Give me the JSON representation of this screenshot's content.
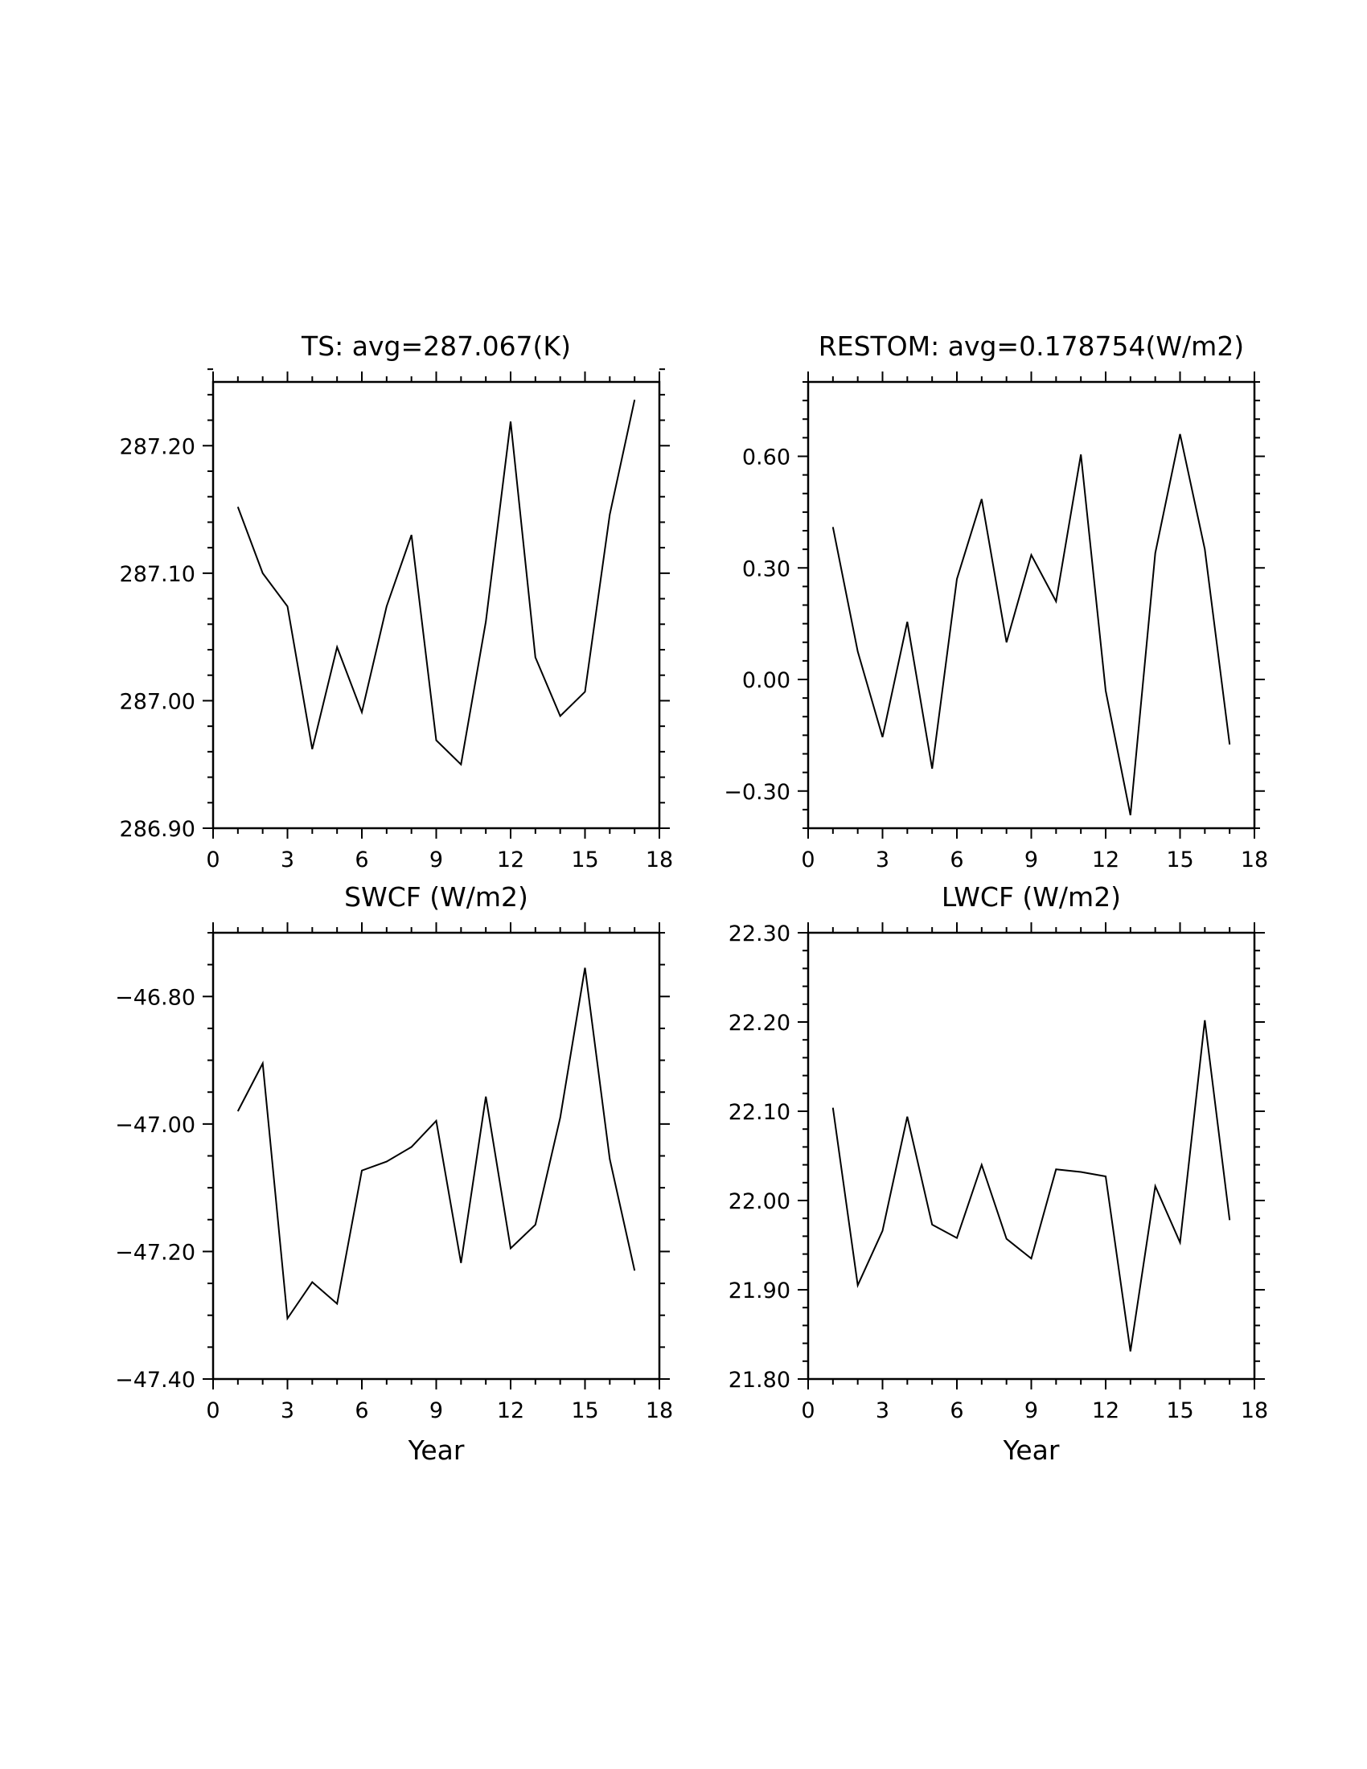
{
  "chart_data": [
    {
      "type": "line",
      "title": "TS: avg=287.067(K)",
      "xlabel": "",
      "ylabel": "",
      "xlim": [
        0,
        18
      ],
      "ylim": [
        286.9,
        287.25
      ],
      "x_ticks": [
        0,
        3,
        6,
        9,
        12,
        15,
        18
      ],
      "x_tick_labels": [
        "0",
        "3",
        "6",
        "9",
        "12",
        "15",
        "18"
      ],
      "y_ticks": [
        286.9,
        287.0,
        287.1,
        287.2
      ],
      "y_tick_labels": [
        "286.90",
        "287.00",
        "287.10",
        "287.20"
      ],
      "y_minor_step": 0.02,
      "x": [
        1,
        2,
        3,
        4,
        5,
        6,
        7,
        8,
        9,
        10,
        11,
        12,
        13,
        14,
        15,
        16,
        17
      ],
      "values": [
        287.152,
        287.1,
        287.074,
        286.962,
        287.042,
        286.991,
        287.074,
        287.13,
        286.969,
        286.95,
        287.062,
        287.219,
        287.034,
        286.988,
        287.007,
        287.146,
        287.236
      ],
      "grid": false,
      "color": "#000000"
    },
    {
      "type": "line",
      "title": "RESTOM: avg=0.178754(W/m2)",
      "xlabel": "",
      "ylabel": "",
      "xlim": [
        0,
        18
      ],
      "ylim": [
        -0.4,
        0.8
      ],
      "x_ticks": [
        0,
        3,
        6,
        9,
        12,
        15,
        18
      ],
      "x_tick_labels": [
        "0",
        "3",
        "6",
        "9",
        "12",
        "15",
        "18"
      ],
      "y_ticks": [
        -0.3,
        0.0,
        0.3,
        0.6
      ],
      "y_tick_labels": [
        "−0.30",
        "0.00",
        "0.30",
        "0.60"
      ],
      "y_minor_step": 0.05,
      "x": [
        1,
        2,
        3,
        4,
        5,
        6,
        7,
        8,
        9,
        10,
        11,
        12,
        13,
        14,
        15,
        16,
        17
      ],
      "values": [
        0.41,
        0.075,
        -0.155,
        0.155,
        -0.24,
        0.27,
        0.485,
        0.1,
        0.335,
        0.21,
        0.605,
        -0.03,
        -0.365,
        0.34,
        0.66,
        0.35,
        -0.175
      ],
      "grid": false,
      "color": "#000000"
    },
    {
      "type": "line",
      "title": "SWCF (W/m2)",
      "xlabel": "Year",
      "ylabel": "",
      "xlim": [
        0,
        18
      ],
      "ylim": [
        -47.4,
        -46.7
      ],
      "x_ticks": [
        0,
        3,
        6,
        9,
        12,
        15,
        18
      ],
      "x_tick_labels": [
        "0",
        "3",
        "6",
        "9",
        "12",
        "15",
        "18"
      ],
      "y_ticks": [
        -47.4,
        -47.2,
        -47.0,
        -46.8
      ],
      "y_tick_labels": [
        "−47.40",
        "−47.20",
        "−47.00",
        "−46.80"
      ],
      "y_minor_step": 0.05,
      "x": [
        1,
        2,
        3,
        4,
        5,
        6,
        7,
        8,
        9,
        10,
        11,
        12,
        13,
        14,
        15,
        16,
        17
      ],
      "values": [
        -46.98,
        -46.905,
        -47.305,
        -47.248,
        -47.282,
        -47.073,
        -47.059,
        -47.036,
        -46.995,
        -47.218,
        -46.957,
        -47.195,
        -47.158,
        -46.99,
        -46.755,
        -47.055,
        -47.23
      ],
      "grid": false,
      "color": "#000000"
    },
    {
      "type": "line",
      "title": "LWCF (W/m2)",
      "xlabel": "Year",
      "ylabel": "",
      "xlim": [
        0,
        18
      ],
      "ylim": [
        21.8,
        22.3
      ],
      "x_ticks": [
        0,
        3,
        6,
        9,
        12,
        15,
        18
      ],
      "x_tick_labels": [
        "0",
        "3",
        "6",
        "9",
        "12",
        "15",
        "18"
      ],
      "y_ticks": [
        21.8,
        21.9,
        22.0,
        22.1,
        22.2,
        22.3
      ],
      "y_tick_labels": [
        "21.80",
        "21.90",
        "22.00",
        "22.10",
        "22.20",
        "22.30"
      ],
      "y_minor_step": 0.02,
      "x": [
        1,
        2,
        3,
        4,
        5,
        6,
        7,
        8,
        9,
        10,
        11,
        12,
        13,
        14,
        15,
        16,
        17
      ],
      "values": [
        22.104,
        21.905,
        21.966,
        22.094,
        21.973,
        21.958,
        22.04,
        21.957,
        21.935,
        22.035,
        22.032,
        22.027,
        21.831,
        22.016,
        21.953,
        22.202,
        21.978
      ],
      "grid": false,
      "color": "#000000"
    }
  ]
}
